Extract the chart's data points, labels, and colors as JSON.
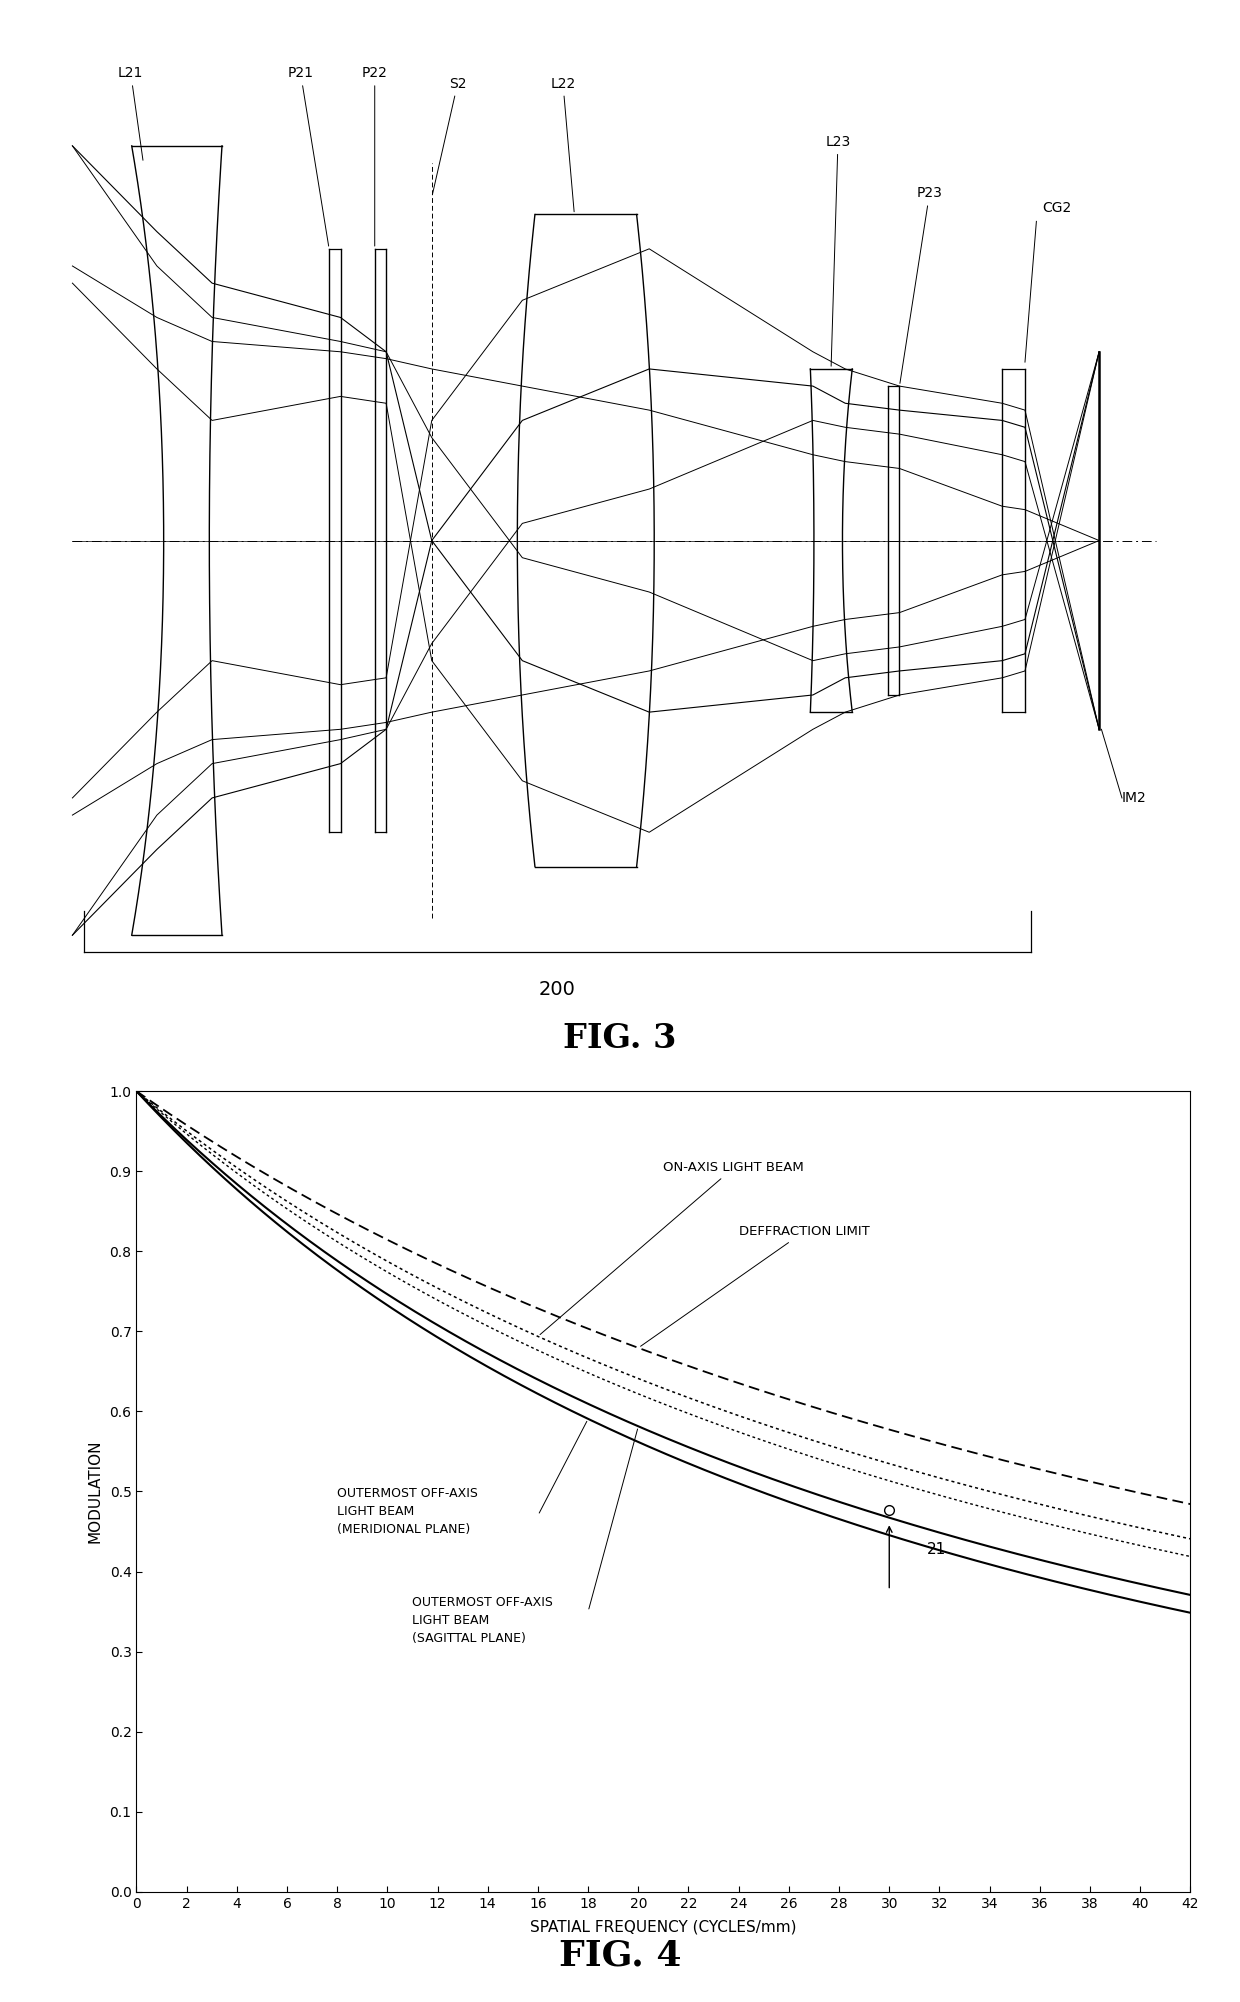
{
  "fig3_title": "FIG. 3",
  "fig4_title": "FIG. 4",
  "bracket_label": "200",
  "im2_label": "IM2",
  "cg2_label": "CG2",
  "ylabel": "MODULATION",
  "xlabel": "SPATIAL FREQUENCY (CYCLES/mm)",
  "xlim": [
    0,
    42
  ],
  "ylim": [
    0,
    1.0
  ],
  "xticks": [
    0,
    2,
    4,
    6,
    8,
    10,
    12,
    14,
    16,
    18,
    20,
    22,
    24,
    26,
    28,
    30,
    32,
    34,
    36,
    38,
    40,
    42
  ],
  "yticks": [
    0,
    0.1,
    0.2,
    0.3,
    0.4,
    0.5,
    0.6,
    0.7,
    0.8,
    0.9,
    1
  ],
  "bg_color": "#ffffff",
  "line_color": "#000000"
}
